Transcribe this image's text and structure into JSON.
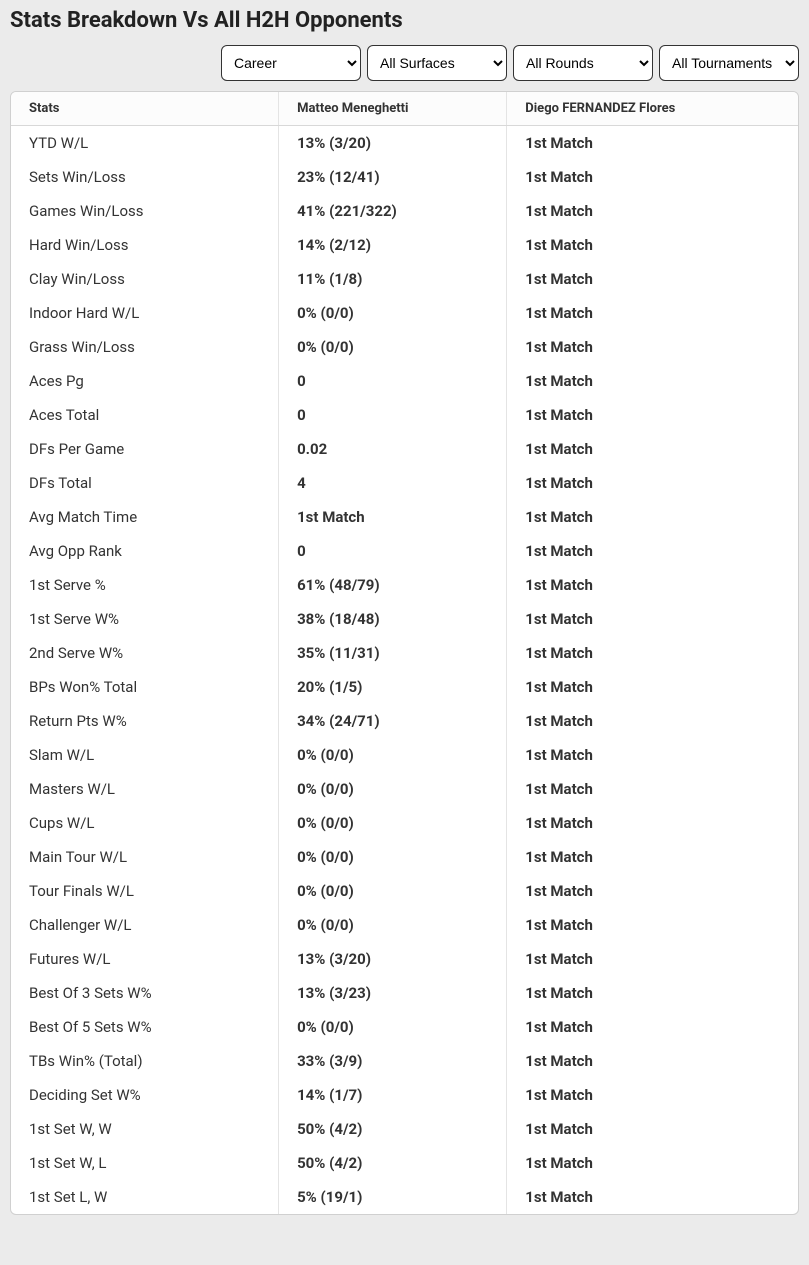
{
  "title": "Stats Breakdown Vs All H2H Opponents",
  "filters": {
    "career": "Career",
    "surfaces": "All Surfaces",
    "rounds": "All Rounds",
    "tournaments": "All Tournaments"
  },
  "columns": {
    "stats": "Stats",
    "player1": "Matteo Meneghetti",
    "player2": "Diego FERNANDEZ Flores"
  },
  "rows": [
    {
      "stat": "YTD W/L",
      "p1": "13% (3/20)",
      "p2": "1st Match"
    },
    {
      "stat": "Sets Win/Loss",
      "p1": "23% (12/41)",
      "p2": "1st Match"
    },
    {
      "stat": "Games Win/Loss",
      "p1": "41% (221/322)",
      "p2": "1st Match"
    },
    {
      "stat": "Hard Win/Loss",
      "p1": "14% (2/12)",
      "p2": "1st Match"
    },
    {
      "stat": "Clay Win/Loss",
      "p1": "11% (1/8)",
      "p2": "1st Match"
    },
    {
      "stat": "Indoor Hard W/L",
      "p1": "0% (0/0)",
      "p2": "1st Match"
    },
    {
      "stat": "Grass Win/Loss",
      "p1": "0% (0/0)",
      "p2": "1st Match"
    },
    {
      "stat": "Aces Pg",
      "p1": "0",
      "p2": "1st Match"
    },
    {
      "stat": "Aces Total",
      "p1": "0",
      "p2": "1st Match"
    },
    {
      "stat": "DFs Per Game",
      "p1": "0.02",
      "p2": "1st Match"
    },
    {
      "stat": "DFs Total",
      "p1": "4",
      "p2": "1st Match"
    },
    {
      "stat": "Avg Match Time",
      "p1": "1st Match",
      "p2": "1st Match"
    },
    {
      "stat": "Avg Opp Rank",
      "p1": "0",
      "p2": "1st Match"
    },
    {
      "stat": "1st Serve %",
      "p1": "61% (48/79)",
      "p2": "1st Match"
    },
    {
      "stat": "1st Serve W%",
      "p1": "38% (18/48)",
      "p2": "1st Match"
    },
    {
      "stat": "2nd Serve W%",
      "p1": "35% (11/31)",
      "p2": "1st Match"
    },
    {
      "stat": "BPs Won% Total",
      "p1": "20% (1/5)",
      "p2": "1st Match"
    },
    {
      "stat": "Return Pts W%",
      "p1": "34% (24/71)",
      "p2": "1st Match"
    },
    {
      "stat": "Slam W/L",
      "p1": "0% (0/0)",
      "p2": "1st Match"
    },
    {
      "stat": "Masters W/L",
      "p1": "0% (0/0)",
      "p2": "1st Match"
    },
    {
      "stat": "Cups W/L",
      "p1": "0% (0/0)",
      "p2": "1st Match"
    },
    {
      "stat": "Main Tour W/L",
      "p1": "0% (0/0)",
      "p2": "1st Match"
    },
    {
      "stat": "Tour Finals W/L",
      "p1": "0% (0/0)",
      "p2": "1st Match"
    },
    {
      "stat": "Challenger W/L",
      "p1": "0% (0/0)",
      "p2": "1st Match"
    },
    {
      "stat": "Futures W/L",
      "p1": "13% (3/20)",
      "p2": "1st Match"
    },
    {
      "stat": "Best Of 3 Sets W%",
      "p1": "13% (3/23)",
      "p2": "1st Match"
    },
    {
      "stat": "Best Of 5 Sets W%",
      "p1": "0% (0/0)",
      "p2": "1st Match"
    },
    {
      "stat": "TBs Win% (Total)",
      "p1": "33% (3/9)",
      "p2": "1st Match"
    },
    {
      "stat": "Deciding Set W%",
      "p1": "14% (1/7)",
      "p2": "1st Match"
    },
    {
      "stat": "1st Set W, W",
      "p1": "50% (4/2)",
      "p2": "1st Match"
    },
    {
      "stat": "1st Set W, L",
      "p1": "50% (4/2)",
      "p2": "1st Match"
    },
    {
      "stat": "1st Set L, W",
      "p1": "5% (19/1)",
      "p2": "1st Match"
    }
  ]
}
